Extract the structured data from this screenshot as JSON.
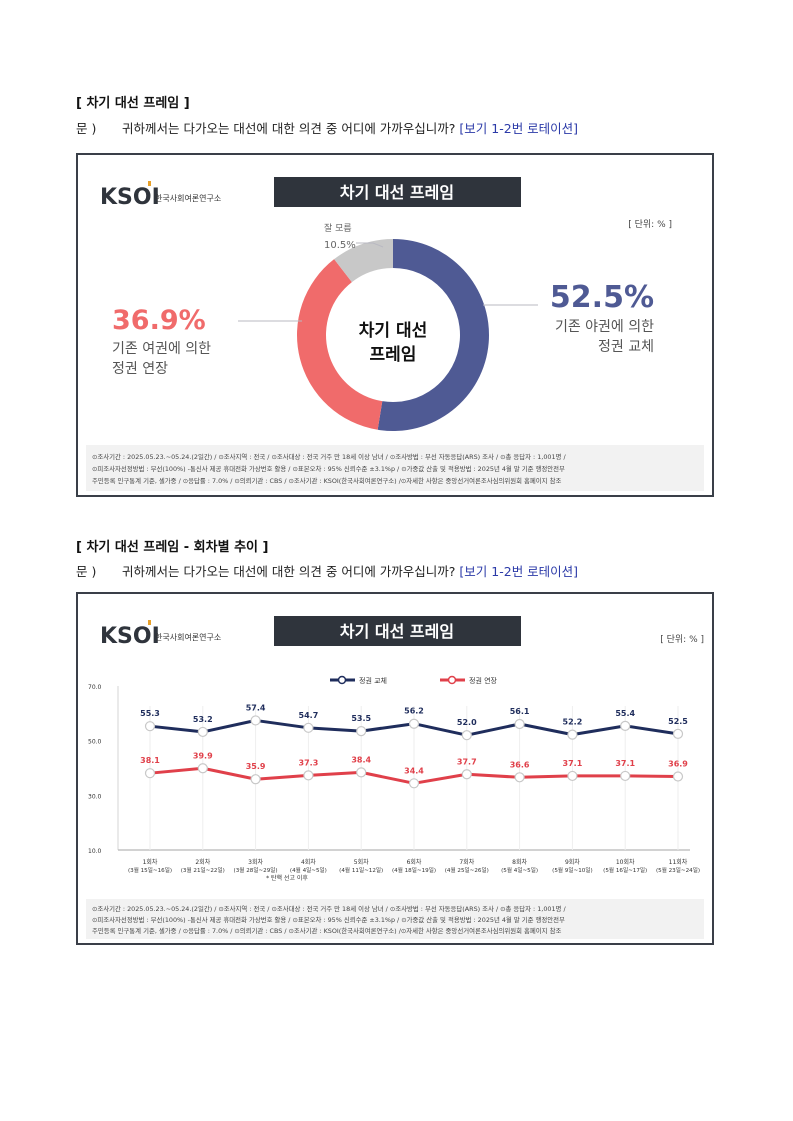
{
  "section1": {
    "title": "[ 차기 대선 프레임 ]",
    "q_label": "문 )",
    "q_text": "귀하께서는 다가오는 대선에 대한 의견 중 어디에 가까우십니까?",
    "q_note": "[보기 1-2번 로테이션]"
  },
  "section2": {
    "title": "[ 차기 대선 프레임 - 회차별 추이 ]",
    "q_label": "문 )",
    "q_text": "귀하께서는 다가오는 대선에 대한 의견 중 어디에 가까우십니까?",
    "q_note": "[보기 1-2번 로테이션]"
  },
  "logo": {
    "mark": "KSOI",
    "org": "한국사회여론연구소"
  },
  "colors": {
    "navy": "#4f5a94",
    "red": "#f06b6b",
    "gray": "#c8c8c8",
    "line_navy": "#1f2d5c",
    "line_red": "#e0404a",
    "title_bg": "#2f343c"
  },
  "donut": {
    "banner_title": "차기 대선 프레임",
    "unit": "[ 단위: % ]",
    "center_line1": "차기 대선",
    "center_line2": "프레임",
    "right_value": "52.5%",
    "right_label1": "기존 야권에 의한",
    "right_label2": "정권 교체",
    "left_value": "36.9%",
    "left_label1": "기존 여권에 의한",
    "left_label2": "정권 연장",
    "top_label": "잘 모름",
    "top_value": "10.5%"
  },
  "chart_data": [
    {
      "type": "pie",
      "title": "차기 대선 프레임",
      "labels": [
        "기존 야권에 의한 정권 교체",
        "기존 여권에 의한 정권 연장",
        "잘 모름"
      ],
      "values": [
        52.5,
        36.9,
        10.5
      ]
    },
    {
      "type": "line",
      "title": "차기 대선 프레임",
      "categories": [
        "1회차",
        "2회차",
        "3회차",
        "4회차",
        "5회차",
        "6회차",
        "7회차",
        "8회차",
        "9회차",
        "10회차",
        "11회차"
      ],
      "category_dates": [
        "(3월 15일~16일)",
        "(3월 21일~22일)",
        "(3월 28일~29일)",
        "(4월 4일~5일)",
        "(4월 11일~12일)",
        "(4월 18일~19일)",
        "(4월 25일~26일)",
        "(5월 4일~5일)",
        "(5월 9일~10일)",
        "(5월 16일~17일)",
        "(5월 23일~24일)"
      ],
      "series": [
        {
          "name": "정권 교체",
          "values": [
            55.3,
            53.2,
            57.4,
            54.7,
            53.5,
            56.2,
            52.0,
            56.1,
            52.2,
            55.4,
            52.5
          ]
        },
        {
          "name": "정권 연장",
          "values": [
            38.1,
            39.9,
            35.9,
            37.3,
            38.4,
            34.4,
            37.7,
            36.6,
            37.1,
            37.1,
            36.9
          ]
        }
      ],
      "value_labels": {
        "정권 교체": [
          "55.3",
          "53.2",
          "57.4",
          "54.7",
          "53.5",
          "56.2",
          "52.0",
          "56.1",
          "52.2",
          "55.4",
          "52.5"
        ],
        "정권 연장": [
          "38.1",
          "39.9",
          "35.9",
          "37.3",
          "38.4",
          "34.4",
          "37.7",
          "36.6",
          "37.1",
          "37.1",
          "36.9"
        ]
      },
      "yticks": [
        "70.0",
        "50.0",
        "30.0",
        "10.0"
      ],
      "ylim": [
        10,
        70
      ],
      "legend": "top-center",
      "note": "* 탄핵 선고 이후",
      "unit": "[ 단위: % ]"
    }
  ],
  "footnote": {
    "line1": "⊙조사기간 : 2025.05.23.~05.24.(2일간) / ⊙조사지역 : 전국 / ⊙조사대상 : 전국 거주 만 18세 이상 남녀 / ⊙조사방법 : 무선 자동응답(ARS) 조사 / ⊙총 응답자 : 1,001명 /",
    "line2": "⊙피조사자선정방법 : 무선(100%) -통신사 제공 휴대전화 가상번호 활용 / ⊙표본오차 : 95% 신뢰수준 ±3.1%p / ⊙가중값 산출 및 적용방법 : 2025년 4월 말 기준 행정안전부",
    "line3": "주민등록 인구통계 기준, 셀가중 / ⊙응답률 : 7.0% / ⊙의뢰기관 : CBS / ⊙조사기관 : KSOI(한국사회여론연구소) /⊙자세한 사항은 중앙선거여론조사심의위원회 홈페이지 참조"
  }
}
